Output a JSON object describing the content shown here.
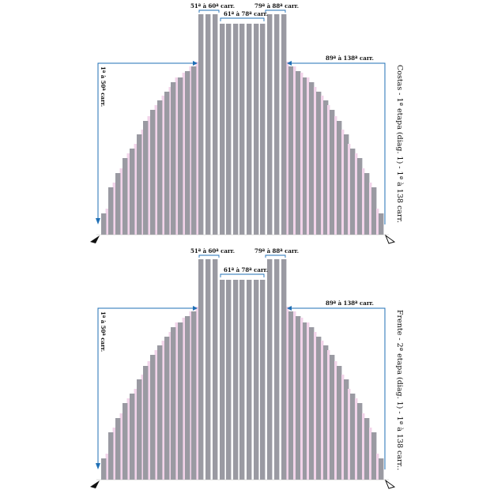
{
  "diagrams": [
    {
      "side_title": "Costas - 1ª etapa (diag. 1) - 1ª à 138 carr.",
      "left_rows": "1ª à 50ª carr.",
      "shoulder_left": "51ª à 60ª carr.",
      "neck_center": "61ª à 78ª carr.",
      "shoulder_right": "79ª à 88ª carr.",
      "right_rows": "89ª à 138ª carr.",
      "neck_style": "raised"
    },
    {
      "side_title": "Frente - 2ª etapa (diag. 1) - 1ª à 138 carr..",
      "left_rows": "1ª à 50ª carr.",
      "shoulder_left": "51ª à 60ª carr.",
      "neck_center": "61ª à 78ª carr.",
      "shoulder_right": "79ª à 88ª carr.",
      "right_rows": "89ª à 138ª carr.",
      "neck_style": "deep"
    }
  ],
  "colors": {
    "bar": "#9a9aa2",
    "ghost": "#f2d4ea",
    "line": "#1f6fb5",
    "arrow": "#111111"
  },
  "icons": {
    "start_marker": "filled-arrow-icon",
    "end_marker": "outline-arrow-icon"
  }
}
